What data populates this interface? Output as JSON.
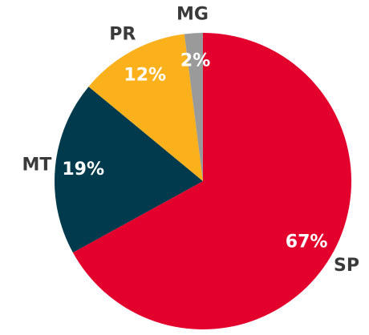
{
  "chart_data": {
    "type": "pie",
    "categories": [
      "SP",
      "MT",
      "PR",
      "MG"
    ],
    "values": [
      67,
      19,
      12,
      2
    ],
    "value_labels": [
      "67%",
      "19%",
      "12%",
      "2%"
    ],
    "colors": [
      "#e3002d",
      "#003a4c",
      "#fbb11c",
      "#9a9a9a"
    ]
  }
}
